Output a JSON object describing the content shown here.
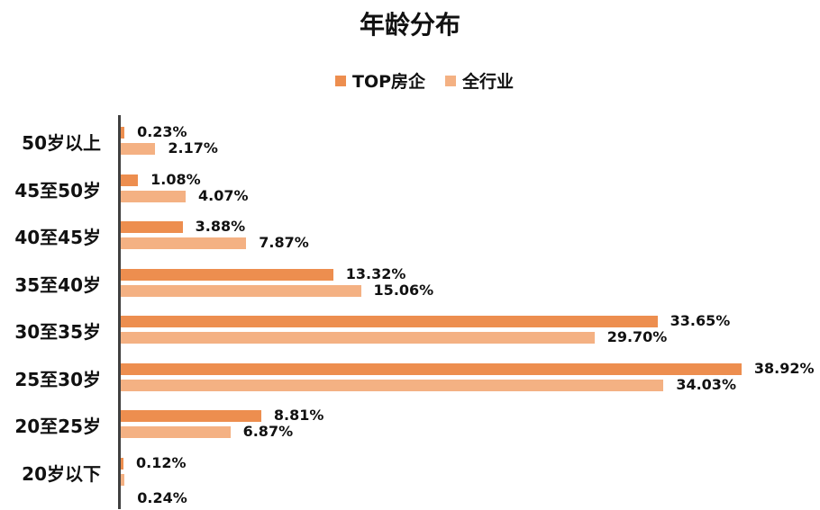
{
  "chart_data": {
    "type": "bar",
    "orientation": "horizontal",
    "title": "年龄分布",
    "xlabel": "",
    "ylabel": "",
    "legend_position": "top",
    "grid": false,
    "categories": [
      "50岁以上",
      "45至50岁",
      "40至45岁",
      "35至40岁",
      "30至35岁",
      "25至30岁",
      "20至25岁",
      "20岁以下"
    ],
    "series": [
      {
        "name": "TOP房企",
        "color": "#ED8E4F",
        "values": [
          0.23,
          1.08,
          3.88,
          13.32,
          33.65,
          38.92,
          8.81,
          0.12
        ],
        "labels": [
          "0.23%",
          "1.08%",
          "3.88%",
          "13.32%",
          "33.65%",
          "38.92%",
          "8.81%",
          "0.12%"
        ]
      },
      {
        "name": "全行业",
        "color": "#F4B183",
        "values": [
          2.17,
          4.07,
          7.87,
          15.06,
          29.7,
          34.03,
          6.87,
          0.24
        ],
        "labels": [
          "2.17%",
          "4.07%",
          "7.87%",
          "15.06%",
          "29.70%",
          "34.03%",
          "6.87%",
          "0.24%"
        ]
      }
    ],
    "xlim": [
      0,
      40
    ],
    "unit": "%"
  }
}
